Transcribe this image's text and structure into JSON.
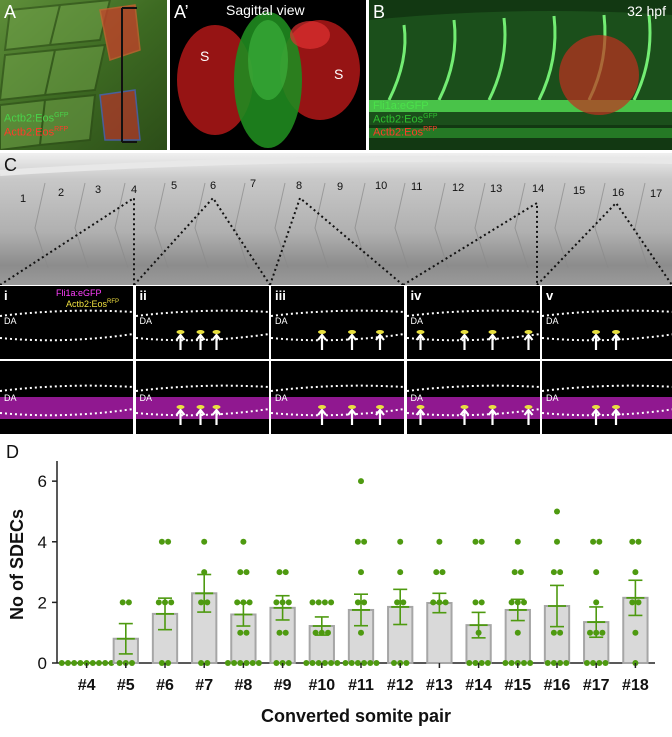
{
  "panel_a": {
    "label": "A",
    "legend": [
      "Actb2:Eos",
      "Actb2:Eos"
    ],
    "legend_sup": [
      "GFP",
      "RFP"
    ]
  },
  "panel_a2": {
    "label": "A’",
    "title": "Sagittal view",
    "s_label": "S"
  },
  "panel_b": {
    "label": "B",
    "stage": "32 hpf",
    "legend": [
      "Fli1a:eGFP",
      "Actb2:Eos",
      "Actb2:Eos"
    ],
    "legend_sup": [
      "",
      "GFP",
      "RFP"
    ]
  },
  "panel_c": {
    "label": "C",
    "somite_numbers": [
      "1",
      "2",
      "3",
      "4",
      "5",
      "6",
      "7",
      "8",
      "9",
      "10",
      "11",
      "12",
      "13",
      "14",
      "15",
      "16",
      "17"
    ],
    "insets": [
      {
        "label": "i",
        "da": "DA"
      },
      {
        "label": "ii",
        "da": "DA"
      },
      {
        "label": "iii",
        "da": "DA"
      },
      {
        "label": "iv",
        "da": "DA"
      },
      {
        "label": "v",
        "da": "DA"
      }
    ],
    "inset_legend": [
      "Fli1a:eGFP",
      "Actb2:Eos"
    ],
    "inset_legend_sup": "RFP"
  },
  "panel_d": {
    "label": "D"
  },
  "chart_data": {
    "type": "bar",
    "xlabel": "Converted somite pair",
    "ylabel": "No of SDECs",
    "ylim": [
      0,
      6.5
    ],
    "yticks": [
      0,
      2,
      4,
      6
    ],
    "categories": [
      "#4",
      "#5",
      "#6",
      "#7",
      "#8",
      "#9",
      "#10",
      "#11",
      "#12",
      "#13",
      "#14",
      "#15",
      "#16",
      "#17",
      "#18"
    ],
    "means": [
      0,
      0.8,
      1.62,
      2.3,
      1.6,
      1.82,
      1.22,
      1.75,
      1.85,
      1.98,
      1.25,
      1.75,
      1.88,
      1.35,
      2.15
    ],
    "sem": [
      0,
      0.5,
      0.52,
      0.62,
      0.38,
      0.4,
      0.3,
      0.52,
      0.58,
      0.32,
      0.42,
      0.35,
      0.68,
      0.5,
      0.58
    ],
    "points": [
      [
        0,
        0,
        0,
        0,
        0,
        0,
        0,
        0,
        0
      ],
      [
        0,
        0,
        0,
        2,
        2
      ],
      [
        0,
        0,
        2,
        2,
        2,
        4,
        4
      ],
      [
        0,
        0,
        2,
        2,
        3,
        4
      ],
      [
        0,
        0,
        0,
        0,
        0,
        0,
        1,
        1,
        2,
        2,
        2,
        3,
        3,
        4
      ],
      [
        0,
        0,
        0,
        1,
        1,
        2,
        2,
        2,
        3,
        3
      ],
      [
        0,
        0,
        0,
        0,
        0,
        0,
        1,
        1,
        1,
        2,
        2,
        2,
        2
      ],
      [
        0,
        0,
        0,
        0,
        0,
        0,
        1,
        2,
        2,
        3,
        4,
        4,
        6
      ],
      [
        0,
        0,
        0,
        2,
        2,
        3,
        4
      ],
      [
        2,
        2,
        2,
        3,
        3,
        4
      ],
      [
        0,
        0,
        0,
        0,
        1,
        2,
        2,
        4,
        4
      ],
      [
        0,
        0,
        0,
        0,
        0,
        1,
        2,
        2,
        2,
        3,
        3,
        4
      ],
      [
        0,
        0,
        0,
        0,
        1,
        1,
        3,
        3,
        4,
        5
      ],
      [
        0,
        0,
        0,
        0,
        1,
        1,
        1,
        2,
        3,
        4,
        4
      ],
      [
        0,
        1,
        2,
        2,
        3,
        4,
        4
      ]
    ],
    "bar_color": "#d9d9d9",
    "bar_edge": "#a6a6a6",
    "point_color": "#4e9a10",
    "grid": false
  }
}
